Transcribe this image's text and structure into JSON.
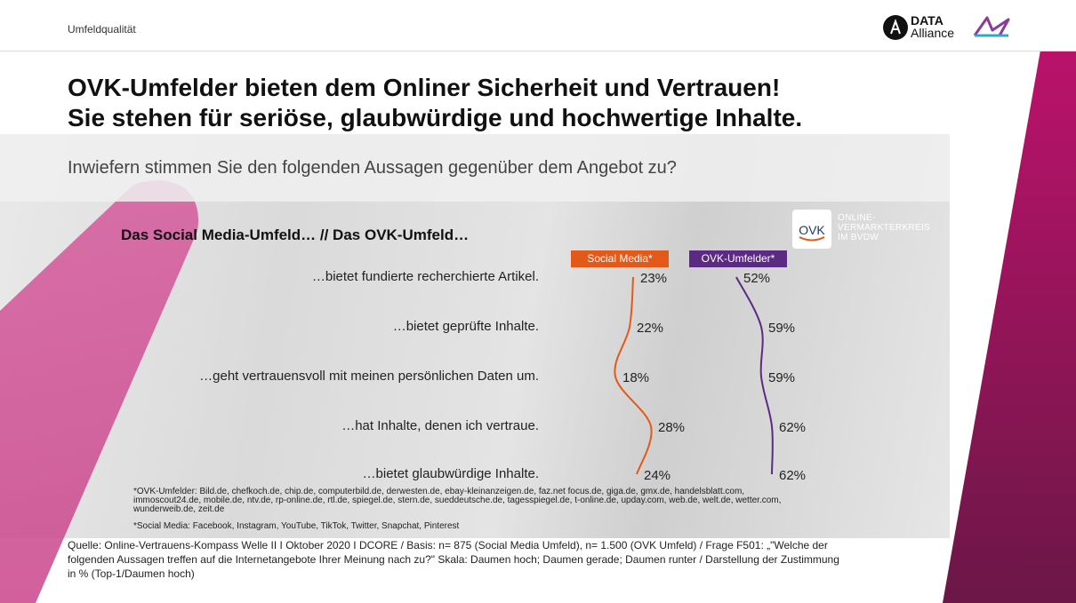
{
  "header": {
    "section_label": "Umfeldqualität",
    "logo_data_line1": "DATA",
    "logo_data_line2": "Alliance"
  },
  "headline": {
    "line1": "OVK-Umfelder bieten dem Onliner Sicherheit und Vertrauen!",
    "line2": "Sie stehen für seriöse, glaubwürdige und hochwertige Inhalte."
  },
  "question": "Inwiefern stimmen Sie den folgenden Aussagen gegenüber dem Angebot zu?",
  "ovk_logo": {
    "mark": "OVK",
    "line1": "ONLINE-",
    "line2": "VERMARKTERKREIS",
    "line3": "IM BVDW"
  },
  "chart_data": {
    "type": "line",
    "title": "Das Social Media-Umfeld… // Das OVK-Umfeld…",
    "categories": [
      "…bietet fundierte recherchierte  Artikel.",
      "…bietet geprüfte Inhalte.",
      "…geht vertrauensvoll mit meinen persönlichen Daten um.",
      "…hat Inhalte, denen ich vertraue.",
      "…bietet glaubwürdige Inhalte."
    ],
    "series": [
      {
        "name": "Social Media*",
        "color": "#e2591a",
        "values": [
          23,
          22,
          18,
          28,
          24
        ]
      },
      {
        "name": "OVK-Umfelder*",
        "color": "#5b2a82",
        "values": [
          52,
          59,
          59,
          62,
          62
        ]
      }
    ],
    "unit": "%",
    "orientation": "vertical-profile"
  },
  "footnotes": {
    "sites": "*OVK-Umfelder: Bild.de, chefkoch.de, chip.de, computerbild.de, derwesten.de, ebay-kleinanzeigen.de, faz.net focus.de, giga.de, gmx.de, handelsblatt.com, immoscout24.de, mobile.de, ntv.de, rp-online.de, rtl.de, spiegel.de, stern.de, sueddeutsche.de, tagesspiegel.de, t-online.de, upday.com, web.de, welt.de, wetter.com, wunderweib.de, zeit.de",
    "social_media": "*Social Media: Facebook, Instagram, YouTube, TikTok, Twitter, Snapchat, Pinterest",
    "source": "Quelle: Online-Vertrauens-Kompass  Welle II I Oktober 2020 I DCORE / Basis: n= 875 (Social Media Umfeld), n= 1.500 (OVK Umfeld) / Frage F501: „\"Welche der folgenden Aussagen treffen auf die Internetangebote  Ihrer Meinung nach zu?\" Skala: Daumen hoch; Daumen gerade; Daumen runter / Darstellung der Zustimmung in % (Top-1/Daumen  hoch)"
  }
}
